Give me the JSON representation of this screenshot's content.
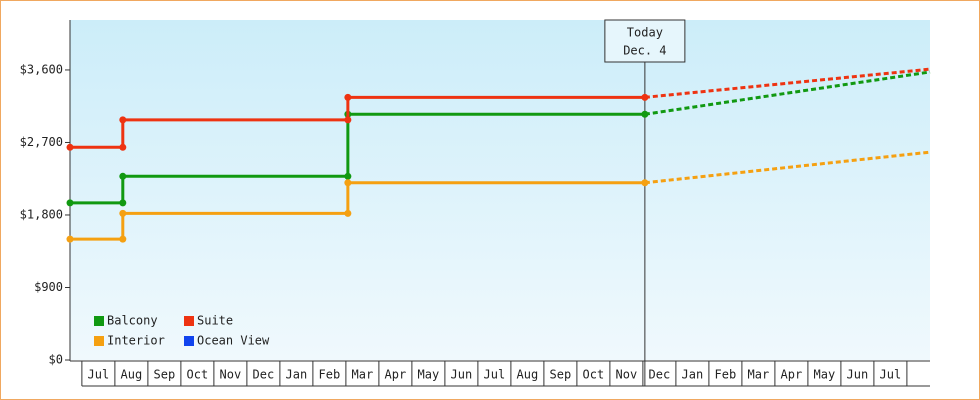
{
  "chart_data": {
    "type": "line",
    "x": [
      -0.36,
      1.24,
      1.24,
      8.06,
      8.06,
      17.06,
      25.7
    ],
    "xlim": [
      -0.36,
      25.7
    ],
    "xticks": [
      {
        "value": 0.5,
        "label": "Jul"
      },
      {
        "value": 1.5,
        "label": "Aug"
      },
      {
        "value": 2.5,
        "label": "Sep"
      },
      {
        "value": 3.5,
        "label": "Oct"
      },
      {
        "value": 4.5,
        "label": "Nov"
      },
      {
        "value": 5.5,
        "label": "Dec"
      },
      {
        "value": 6.5,
        "label": "Jan"
      },
      {
        "value": 7.5,
        "label": "Feb"
      },
      {
        "value": 8.5,
        "label": "Mar"
      },
      {
        "value": 9.5,
        "label": "Apr"
      },
      {
        "value": 10.5,
        "label": "May"
      },
      {
        "value": 11.5,
        "label": "Jun"
      },
      {
        "value": 12.5,
        "label": "Jul"
      },
      {
        "value": 13.5,
        "label": "Aug"
      },
      {
        "value": 14.5,
        "label": "Sep"
      },
      {
        "value": 15.5,
        "label": "Oct"
      },
      {
        "value": 16.5,
        "label": "Nov"
      },
      {
        "value": 17.5,
        "label": "Dec"
      },
      {
        "value": 18.5,
        "label": "Jan"
      },
      {
        "value": 19.5,
        "label": "Feb"
      },
      {
        "value": 20.5,
        "label": "Mar"
      },
      {
        "value": 21.5,
        "label": "Apr"
      },
      {
        "value": 22.5,
        "label": "May"
      },
      {
        "value": 23.5,
        "label": "Jun"
      },
      {
        "value": 24.5,
        "label": "Jul"
      }
    ],
    "ylim": [
      0,
      4220
    ],
    "yticks": [
      {
        "value": 0,
        "label": "$0"
      },
      {
        "value": 900,
        "label": "$900"
      },
      {
        "value": 1800,
        "label": "$1,800"
      },
      {
        "value": 2700,
        "label": "$2,700"
      },
      {
        "value": 3600,
        "label": "$3,600"
      }
    ],
    "today": {
      "x": 17.06,
      "label": [
        "Today",
        "Dec. 4"
      ]
    },
    "series": [
      {
        "name": "Balcony",
        "color": "#119911",
        "values": [
          1950,
          1950,
          2280,
          2280,
          3050,
          3050,
          3575
        ]
      },
      {
        "name": "Suite",
        "color": "#ee3311",
        "values": [
          2640,
          2640,
          2980,
          2980,
          3260,
          3260,
          3610
        ]
      },
      {
        "name": "Interior",
        "color": "#f5a011",
        "values": [
          1500,
          1500,
          1820,
          1820,
          2200,
          2200,
          2580
        ]
      },
      {
        "name": "Ocean View",
        "color": "#1144ee",
        "values": [
          null,
          null,
          null,
          null,
          null,
          null,
          null
        ]
      }
    ]
  }
}
